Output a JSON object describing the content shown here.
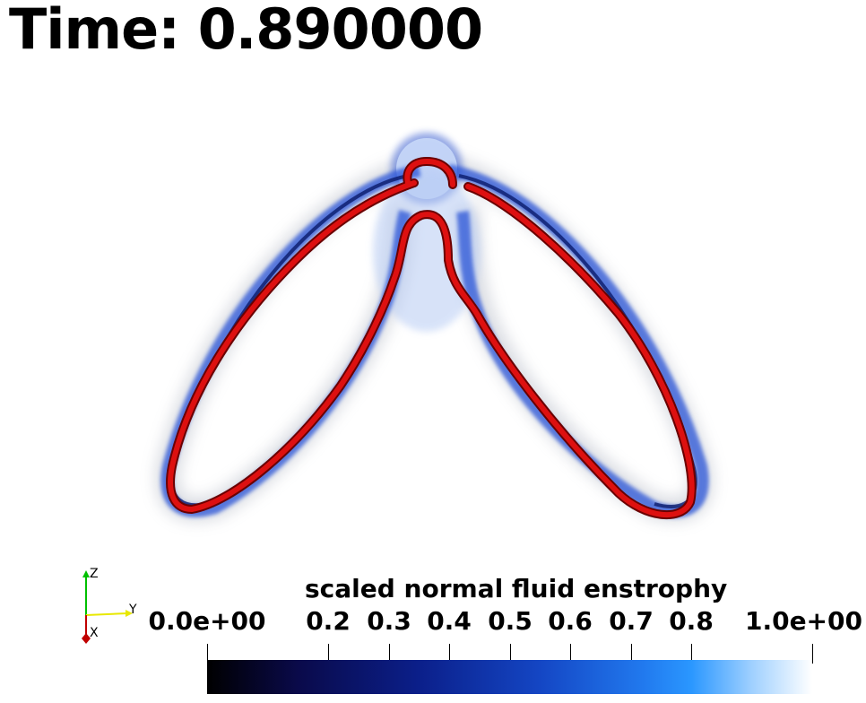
{
  "title": "Time: 0.890000",
  "colorbar": {
    "title": "scaled normal fluid enstrophy",
    "ticks": [
      {
        "label": "0.0e+00",
        "value": 0.0
      },
      {
        "label": "0.2",
        "value": 0.2
      },
      {
        "label": "0.3",
        "value": 0.3
      },
      {
        "label": "0.4",
        "value": 0.4
      },
      {
        "label": "0.5",
        "value": 0.5
      },
      {
        "label": "0.6",
        "value": 0.6
      },
      {
        "label": "0.7",
        "value": 0.7
      },
      {
        "label": "0.8",
        "value": 0.8
      },
      {
        "label": "1.0e+00",
        "value": 1.0
      }
    ],
    "range": [
      0.0,
      1.0
    ],
    "colors": [
      "#000000",
      "#0b1f8a",
      "#2a97ff",
      "#ffffff"
    ]
  },
  "orientation_axes": {
    "z_label": "Z",
    "y_label": "Y",
    "x_label": "X",
    "z_color": "#00c000",
    "y_color": "#e8e800",
    "x_color": "#c00000"
  },
  "vortex_color": "#cc0000",
  "enstrophy_color": "#3a6ee0"
}
